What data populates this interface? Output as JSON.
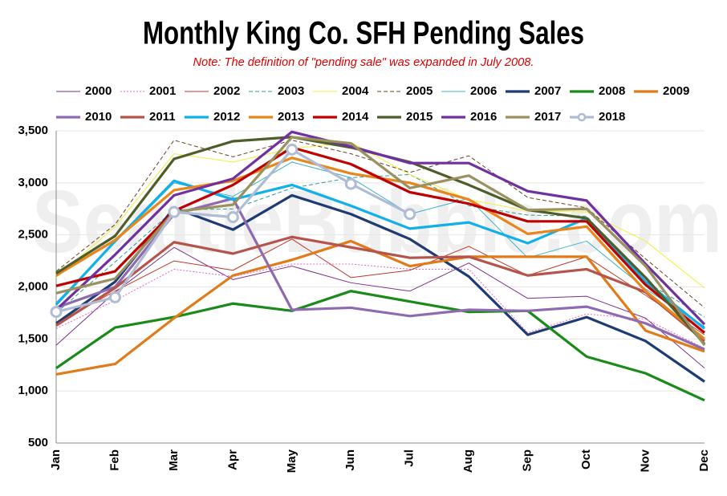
{
  "chart_data": {
    "type": "line",
    "title": "Monthly King Co. SFH Pending Sales",
    "subtitle": "Note: The definition of \"pending sale\" was expanded in July 2008.",
    "watermark": "SeattleBubble.com",
    "categories": [
      "Jan",
      "Feb",
      "Mar",
      "Apr",
      "May",
      "Jun",
      "Jul",
      "Aug",
      "Sep",
      "Oct",
      "Nov",
      "Dec"
    ],
    "ylim": [
      500,
      3500
    ],
    "yticks": [
      {
        "value": 500,
        "label": "500"
      },
      {
        "value": 1000,
        "label": "1,000"
      },
      {
        "value": 1500,
        "label": "1,500"
      },
      {
        "value": 2000,
        "label": "2,000"
      },
      {
        "value": 2500,
        "label": "2,500"
      },
      {
        "value": 3000,
        "label": "3,000"
      },
      {
        "value": 3500,
        "label": "3,500"
      }
    ],
    "grid": true,
    "series": [
      {
        "name": "2000",
        "color": "#7b2d8e",
        "style": "solid",
        "weight": "thin",
        "values": [
          1440,
          1950,
          2380,
          2070,
          2200,
          2040,
          1960,
          2230,
          1890,
          1910,
          1700,
          1220
        ]
      },
      {
        "name": "2001",
        "color": "#e066d0",
        "style": "dotted",
        "weight": "thin",
        "values": [
          1600,
          1870,
          2170,
          2100,
          2220,
          2220,
          2170,
          2170,
          1560,
          1740,
          1690,
          1410
        ]
      },
      {
        "name": "2002",
        "color": "#c0392b",
        "style": "solid",
        "weight": "thin",
        "values": [
          1650,
          1960,
          2250,
          2160,
          2460,
          2090,
          2160,
          2390,
          2110,
          2290,
          1920,
          1540
        ]
      },
      {
        "name": "2003",
        "color": "#2a9d8f",
        "style": "dashed",
        "weight": "thin",
        "values": [
          1750,
          2240,
          2740,
          2750,
          2950,
          3050,
          3080,
          2780,
          2690,
          2680,
          2050,
          1710
        ]
      },
      {
        "name": "2004",
        "color": "#f0f040",
        "style": "solid",
        "weight": "thin",
        "values": [
          2090,
          2580,
          3280,
          3200,
          3330,
          3390,
          3080,
          2840,
          2730,
          2720,
          2440,
          1990
        ]
      },
      {
        "name": "2005",
        "color": "#6b4226",
        "style": "dashed",
        "weight": "thin",
        "values": [
          2150,
          2600,
          3410,
          3250,
          3410,
          3280,
          3100,
          3260,
          2860,
          2760,
          2270,
          1800
        ]
      },
      {
        "name": "2006",
        "color": "#3bb4c9",
        "style": "solid",
        "weight": "thin",
        "values": [
          1850,
          2430,
          3000,
          2870,
          3200,
          3050,
          2700,
          2850,
          2280,
          2440,
          1980,
          1620
        ]
      },
      {
        "name": "2007",
        "color": "#1f3b73",
        "style": "solid",
        "weight": "thick",
        "values": [
          1650,
          2050,
          2760,
          2550,
          2880,
          2700,
          2460,
          2100,
          1540,
          1710,
          1480,
          1090
        ]
      },
      {
        "name": "2008",
        "color": "#1a8a1a",
        "style": "solid",
        "weight": "thick",
        "values": [
          1220,
          1610,
          1710,
          1840,
          1770,
          1960,
          1860,
          1760,
          1770,
          1330,
          1170,
          910
        ]
      },
      {
        "name": "2009",
        "color": "#e07b1a",
        "style": "solid",
        "weight": "thick",
        "values": [
          1160,
          1260,
          1700,
          2110,
          2260,
          2440,
          2200,
          2290,
          2290,
          2290,
          1580,
          1380
        ]
      },
      {
        "name": "2010",
        "color": "#8e6bb0",
        "style": "solid",
        "weight": "thick",
        "values": [
          1800,
          2000,
          2700,
          2850,
          1780,
          1800,
          1720,
          1780,
          1770,
          1810,
          1650,
          1400
        ]
      },
      {
        "name": "2011",
        "color": "#b5544a",
        "style": "solid",
        "weight": "thick",
        "values": [
          1630,
          1990,
          2430,
          2320,
          2480,
          2380,
          2280,
          2290,
          2110,
          2170,
          1950,
          1480
        ]
      },
      {
        "name": "2012",
        "color": "#12b0e8",
        "style": "solid",
        "weight": "thick",
        "values": [
          1830,
          2440,
          3020,
          2840,
          2980,
          2780,
          2560,
          2620,
          2420,
          2660,
          2050,
          1600
        ]
      },
      {
        "name": "2013",
        "color": "#e8861a",
        "style": "solid",
        "weight": "thick",
        "values": [
          2110,
          2450,
          2930,
          3020,
          3240,
          3090,
          3000,
          2840,
          2510,
          2580,
          1960,
          1500
        ]
      },
      {
        "name": "2014",
        "color": "#c00000",
        "style": "solid",
        "weight": "thick",
        "values": [
          2010,
          2150,
          2730,
          2980,
          3340,
          3180,
          2910,
          2800,
          2630,
          2630,
          2020,
          1560
        ]
      },
      {
        "name": "2015",
        "color": "#4e5e2a",
        "style": "solid",
        "weight": "thick",
        "values": [
          2130,
          2490,
          3230,
          3400,
          3440,
          3340,
          3200,
          2980,
          2740,
          2660,
          2090,
          1450
        ]
      },
      {
        "name": "2016",
        "color": "#7030a0",
        "style": "solid",
        "weight": "thick",
        "values": [
          1780,
          2310,
          2880,
          3040,
          3490,
          3350,
          3190,
          3190,
          2920,
          2830,
          2220,
          1640
        ]
      },
      {
        "name": "2017",
        "color": "#9a9060",
        "style": "solid",
        "weight": "thick",
        "values": [
          1940,
          2080,
          2720,
          2790,
          3440,
          3380,
          2950,
          3070,
          2740,
          2750,
          2200,
          1440
        ]
      },
      {
        "name": "2018",
        "color": "#b0bcd4",
        "style": "solid",
        "weight": "thick",
        "marker": "circle",
        "values": [
          1760,
          1900,
          2720,
          2670,
          3320,
          2990,
          2700,
          null,
          null,
          null,
          null,
          null
        ]
      }
    ]
  }
}
